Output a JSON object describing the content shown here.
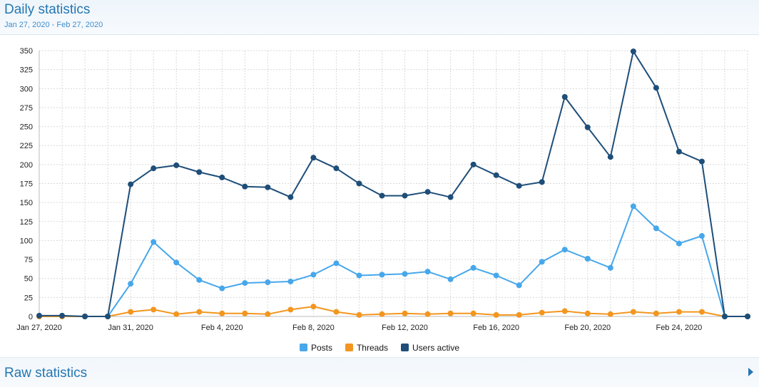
{
  "header": {
    "title": "Daily statistics",
    "subtitle": "Jan 27, 2020 - Feb 27, 2020"
  },
  "footer": {
    "title": "Raw statistics",
    "arrow_icon": "caret-right-icon"
  },
  "chart_data": {
    "type": "line",
    "x": [
      "Jan 27, 2020",
      "Jan 28, 2020",
      "Jan 29, 2020",
      "Jan 30, 2020",
      "Jan 31, 2020",
      "Feb 1, 2020",
      "Feb 2, 2020",
      "Feb 3, 2020",
      "Feb 4, 2020",
      "Feb 5, 2020",
      "Feb 6, 2020",
      "Feb 7, 2020",
      "Feb 8, 2020",
      "Feb 9, 2020",
      "Feb 10, 2020",
      "Feb 11, 2020",
      "Feb 12, 2020",
      "Feb 13, 2020",
      "Feb 14, 2020",
      "Feb 15, 2020",
      "Feb 16, 2020",
      "Feb 17, 2020",
      "Feb 18, 2020",
      "Feb 19, 2020",
      "Feb 20, 2020",
      "Feb 21, 2020",
      "Feb 22, 2020",
      "Feb 23, 2020",
      "Feb 24, 2020",
      "Feb 25, 2020",
      "Feb 26, 2020",
      "Feb 27, 2020"
    ],
    "x_tick_labels": [
      "Jan 27, 2020",
      "Jan 31, 2020",
      "Feb 4, 2020",
      "Feb 8, 2020",
      "Feb 12, 2020",
      "Feb 16, 2020",
      "Feb 20, 2020",
      "Feb 24, 2020"
    ],
    "y_ticks": [
      0,
      25,
      50,
      75,
      100,
      125,
      150,
      175,
      200,
      225,
      250,
      275,
      300,
      325,
      350
    ],
    "ylim": [
      0,
      350
    ],
    "grid": true,
    "legend_position": "bottom",
    "series": [
      {
        "name": "Posts",
        "color": "#47a7eb",
        "values": [
          0,
          0,
          0,
          0,
          43,
          98,
          71,
          48,
          37,
          44,
          45,
          46,
          55,
          70,
          54,
          55,
          56,
          59,
          49,
          64,
          54,
          41,
          72,
          88,
          76,
          64,
          145,
          116,
          96,
          106,
          0,
          0
        ]
      },
      {
        "name": "Threads",
        "color": "#f3961f",
        "values": [
          0,
          0,
          0,
          0,
          6,
          9,
          3,
          6,
          4,
          4,
          3,
          9,
          13,
          6,
          2,
          3,
          4,
          3,
          4,
          4,
          2,
          2,
          5,
          7,
          4,
          3,
          6,
          4,
          6,
          6,
          0,
          0
        ]
      },
      {
        "name": "Users active",
        "color": "#1e4e79",
        "values": [
          1,
          1,
          0,
          0,
          174,
          195,
          199,
          190,
          183,
          171,
          170,
          157,
          209,
          195,
          175,
          159,
          159,
          164,
          157,
          200,
          186,
          172,
          177,
          289,
          249,
          210,
          349,
          301,
          217,
          204,
          0,
          0
        ]
      }
    ]
  }
}
